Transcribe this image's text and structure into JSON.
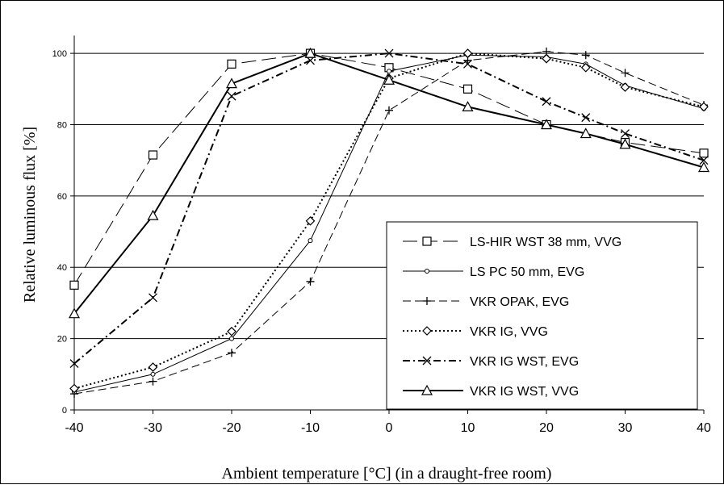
{
  "chart_data": {
    "type": "line",
    "xlabel": "Ambient temperature [°C] (in a draught-free room)",
    "ylabel": "Relative luminous flux [%]",
    "xlim": [
      -40,
      40
    ],
    "ylim": [
      0,
      105
    ],
    "x_ticks": [
      "-40",
      "-30",
      "-20",
      "-10",
      "0",
      "10",
      "20",
      "30",
      "40"
    ],
    "y_ticks": [
      "0",
      "20",
      "40",
      "60",
      "80",
      "100"
    ],
    "grid": "horizontal",
    "legend_position": "bottom-right",
    "series": [
      {
        "name": "LS-HIR WST 38 mm, VVG",
        "marker": "square",
        "dash": "long-dash",
        "x": [
          -40,
          -30,
          -20,
          -10,
          0,
          10,
          20,
          30,
          40
        ],
        "y": [
          35,
          71.5,
          97,
          100,
          96,
          90,
          80,
          75,
          72
        ]
      },
      {
        "name": "LS PC 50 mm, EVG",
        "marker": "dot",
        "dash": "solid-thin",
        "x": [
          -40,
          -30,
          -20,
          -10,
          0,
          10,
          20,
          25,
          30,
          40
        ],
        "y": [
          5,
          10,
          20,
          47.5,
          95,
          99.5,
          99,
          97,
          91,
          84.5
        ]
      },
      {
        "name": "VKR OPAK, EVG",
        "marker": "plus",
        "dash": "dash",
        "x": [
          -40,
          -30,
          -20,
          -10,
          0,
          10,
          20,
          25,
          30,
          40
        ],
        "y": [
          4.5,
          8,
          16,
          36,
          84,
          98,
          100.5,
          99.5,
          94.5,
          85.5
        ]
      },
      {
        "name": "VKR IG, VVG",
        "marker": "diamond",
        "dash": "dotted",
        "x": [
          -40,
          -30,
          -20,
          -10,
          0,
          10,
          20,
          25,
          30,
          40
        ],
        "y": [
          6,
          12,
          22,
          53,
          93,
          100,
          98.5,
          96,
          90.5,
          85
        ]
      },
      {
        "name": "VKR IG WST, EVG",
        "marker": "x",
        "dash": "dash-dot",
        "x": [
          -40,
          -30,
          -20,
          -10,
          0,
          10,
          20,
          25,
          30,
          40
        ],
        "y": [
          13,
          31.5,
          88,
          98,
          100,
          97,
          86.5,
          82,
          77.5,
          70
        ]
      },
      {
        "name": "VKR IG WST, VVG",
        "marker": "triangle",
        "dash": "solid",
        "x": [
          -40,
          -30,
          -20,
          -10,
          0,
          10,
          20,
          25,
          30,
          40
        ],
        "y": [
          27,
          54.5,
          91.5,
          100,
          92.5,
          85,
          80,
          77.5,
          74.5,
          68
        ]
      }
    ]
  }
}
